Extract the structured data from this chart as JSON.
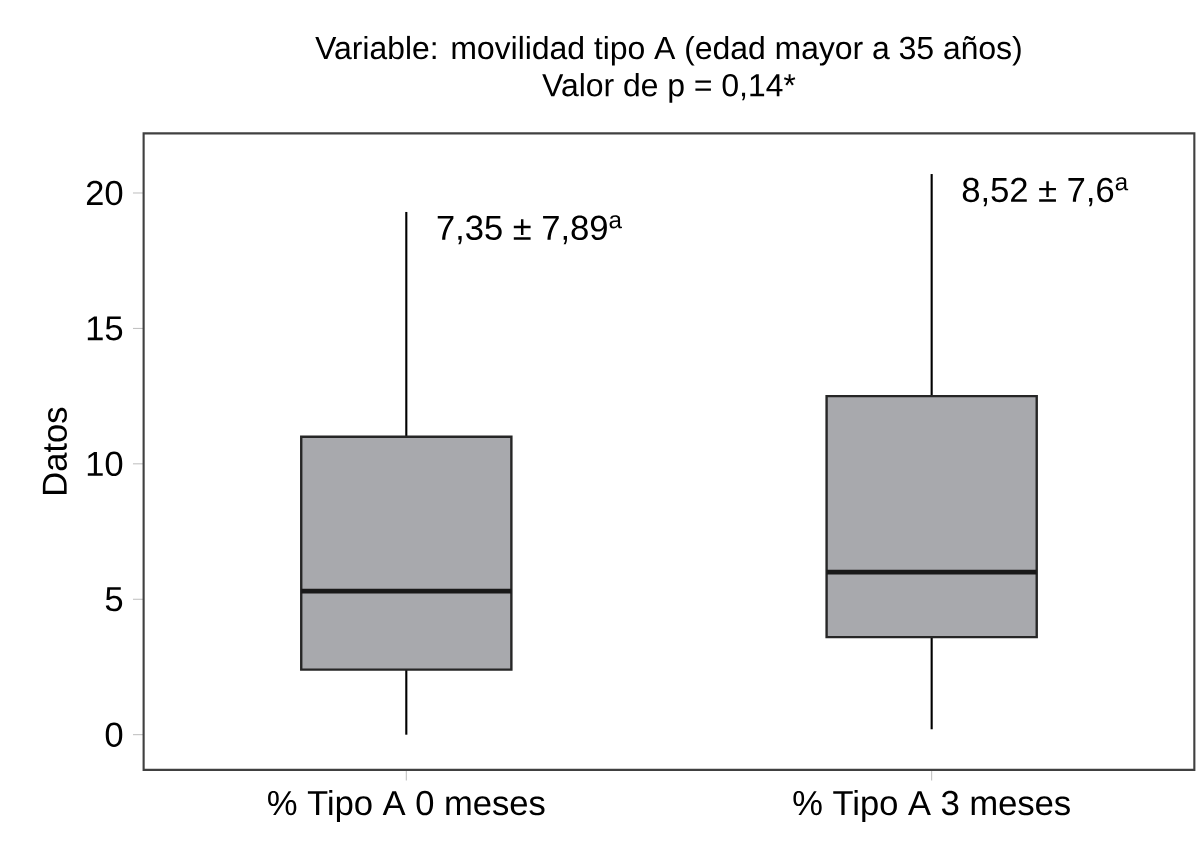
{
  "chart_data": {
    "type": "box",
    "title": "Variable: movilidad tipo A (edad mayor a 35 años)",
    "subtitle": "Valor de p = 0,14*",
    "ylabel": "Datos",
    "categories": [
      "% Tipo A 0 meses",
      "% Tipo A 3 meses"
    ],
    "boxes": [
      {
        "low": 0,
        "q1": 2.4,
        "median": 5.3,
        "q3": 11.0,
        "high": 19.3
      },
      {
        "low": 0.2,
        "q1": 3.6,
        "median": 6.0,
        "q3": 12.5,
        "high": 20.7
      }
    ],
    "color": "#a8a9ad",
    "ylim": [
      -1.3,
      22.2
    ],
    "yticks": [
      0,
      5,
      10,
      15,
      20
    ],
    "grid": false,
    "annotations": [
      "7,35 ± 7,89$^{a}$",
      "8,52 ± 7,6$^{a}$"
    ]
  }
}
